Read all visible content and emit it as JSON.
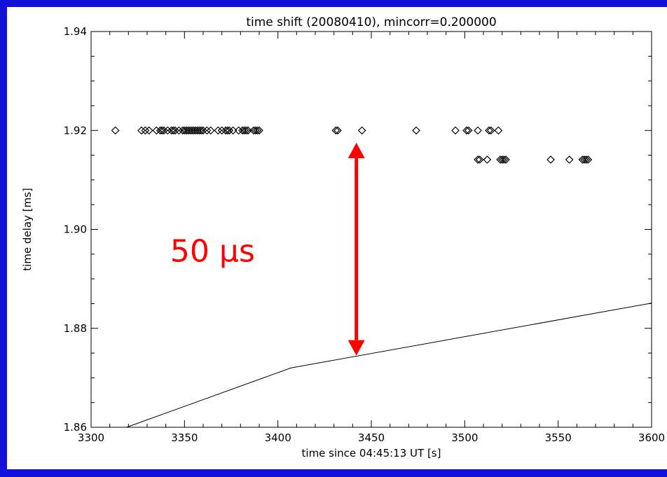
{
  "chart_data": {
    "type": "scatter",
    "title": "time shift (20080410), mincorr=0.200000",
    "xlabel": "time since 04:45:13 UT [s]",
    "ylabel": "time delay [ms]",
    "xlim": [
      3300,
      3600
    ],
    "ylim": [
      1.86,
      1.94
    ],
    "x_ticks": [
      3300,
      3350,
      3400,
      3450,
      3500,
      3550,
      3600
    ],
    "x_tick_labels": [
      "3300",
      "3350",
      "3400",
      "3450",
      "3500",
      "3550",
      "3600"
    ],
    "y_ticks": [
      1.86,
      1.88,
      1.9,
      1.92,
      1.94
    ],
    "y_tick_labels": [
      "1.86",
      "1.88",
      "1.90",
      "1.92",
      "1.94"
    ],
    "grid": false,
    "series": [
      {
        "marker": "diamond",
        "color": "#000000",
        "x": [
          3313,
          3327,
          3329,
          3331,
          3335,
          3337,
          3338,
          3339,
          3341,
          3343,
          3344,
          3345,
          3347,
          3349,
          3350,
          3351,
          3352,
          3353,
          3354,
          3355,
          3356,
          3357,
          3358,
          3359,
          3360,
          3362,
          3364,
          3368,
          3370,
          3372,
          3373,
          3374,
          3376,
          3379,
          3381,
          3382,
          3383,
          3384,
          3387,
          3388,
          3389,
          3390,
          3431,
          3432,
          3445,
          3474,
          3495,
          3501,
          3502,
          3507,
          3513,
          3514,
          3518,
          3507,
          3508,
          3512,
          3519,
          3520,
          3521,
          3522,
          3546,
          3556,
          3563,
          3564,
          3565,
          3566
        ],
        "y": [
          1.92,
          1.92,
          1.92,
          1.92,
          1.92,
          1.92,
          1.92,
          1.92,
          1.92,
          1.92,
          1.92,
          1.92,
          1.92,
          1.92,
          1.92,
          1.92,
          1.92,
          1.92,
          1.92,
          1.92,
          1.92,
          1.92,
          1.92,
          1.92,
          1.92,
          1.92,
          1.92,
          1.92,
          1.92,
          1.92,
          1.92,
          1.92,
          1.92,
          1.92,
          1.92,
          1.92,
          1.92,
          1.92,
          1.92,
          1.92,
          1.92,
          1.92,
          1.92,
          1.92,
          1.92,
          1.92,
          1.92,
          1.92,
          1.92,
          1.92,
          1.92,
          1.92,
          1.92,
          1.9141,
          1.9141,
          1.9141,
          1.9141,
          1.9141,
          1.9141,
          1.9141,
          1.9141,
          1.9141,
          1.9141,
          1.9141,
          1.9141,
          1.9141
        ]
      },
      {
        "marker": "line",
        "color": "#000000",
        "x": [
          3319,
          3407,
          3600
        ],
        "y": [
          1.86,
          1.872,
          1.8851
        ]
      }
    ],
    "annotations": [
      {
        "type": "double-arrow",
        "color": "#ff0000",
        "x": 3442,
        "y_from": 1.8745,
        "y_to": 1.9175,
        "label": "50 μs",
        "label_x": 3365,
        "label_y": 1.8935
      }
    ]
  }
}
